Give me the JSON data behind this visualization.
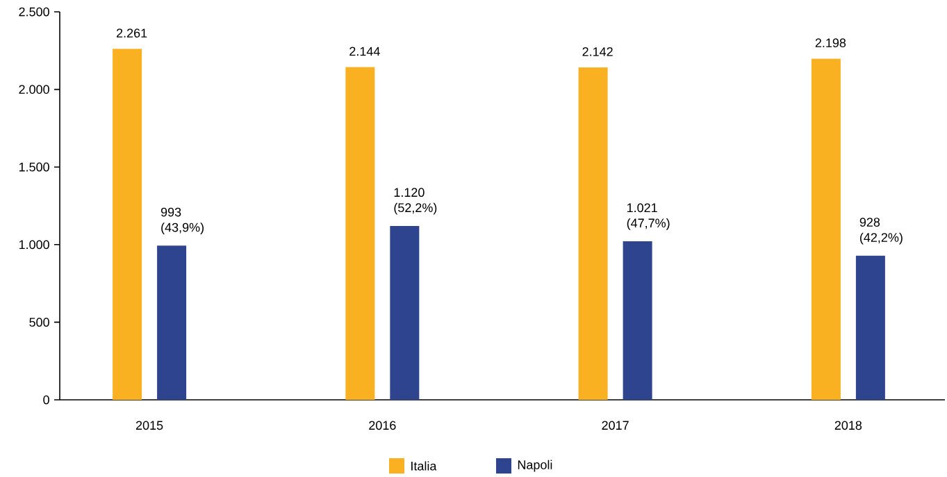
{
  "chart_data": {
    "type": "bar",
    "categories": [
      "2015",
      "2016",
      "2017",
      "2018"
    ],
    "series": [
      {
        "name": "Italia",
        "color": "#f9b122",
        "values": [
          2261,
          2144,
          2142,
          2198
        ],
        "value_labels": [
          "2.261",
          "2.144",
          "2.142",
          "2.198"
        ]
      },
      {
        "name": "Napoli",
        "color": "#2e448e",
        "values": [
          993,
          1120,
          1021,
          928
        ],
        "value_labels": [
          "993 (43,9%)",
          "1.120 (52,2%)",
          "1.021 (47,7%)",
          "928 (42,2%)"
        ]
      }
    ],
    "ylim": [
      0,
      2500
    ],
    "yticks": [
      {
        "value": 0,
        "label": "0"
      },
      {
        "value": 500,
        "label": "500"
      },
      {
        "value": 1000,
        "label": "1.000"
      },
      {
        "value": 1500,
        "label": "1.500"
      },
      {
        "value": 2000,
        "label": "2.000"
      },
      {
        "value": 2500,
        "label": "2.500"
      }
    ],
    "grid": false,
    "legend": "bottom"
  }
}
